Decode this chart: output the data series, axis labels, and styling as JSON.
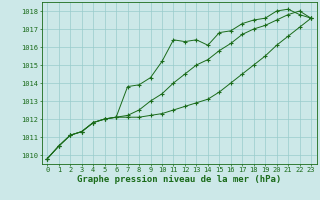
{
  "x": [
    0,
    1,
    2,
    3,
    4,
    5,
    6,
    7,
    8,
    9,
    10,
    11,
    12,
    13,
    14,
    15,
    16,
    17,
    18,
    19,
    20,
    21,
    22,
    23
  ],
  "line_top": [
    1009.8,
    1010.5,
    1011.1,
    1011.3,
    1011.8,
    1012.0,
    1012.1,
    1013.8,
    1013.9,
    1014.3,
    1015.2,
    1016.4,
    1016.3,
    1016.4,
    1016.1,
    1016.8,
    1016.9,
    1017.3,
    1017.5,
    1017.6,
    1018.0,
    1018.1,
    1017.8,
    1017.6
  ],
  "line_mid": [
    1009.8,
    1010.5,
    1011.1,
    1011.3,
    1011.8,
    1012.0,
    1012.1,
    1012.2,
    1012.5,
    1013.0,
    1013.4,
    1014.0,
    1014.5,
    1015.0,
    1015.3,
    1015.8,
    1016.2,
    1016.7,
    1017.0,
    1017.2,
    1017.5,
    1017.8,
    1018.0,
    1017.6
  ],
  "line_bot": [
    1009.8,
    1010.5,
    1011.1,
    1011.3,
    1011.8,
    1012.0,
    1012.1,
    1012.1,
    1012.1,
    1012.2,
    1012.3,
    1012.5,
    1012.7,
    1012.9,
    1013.1,
    1013.5,
    1014.0,
    1014.5,
    1015.0,
    1015.5,
    1016.1,
    1016.6,
    1017.1,
    1017.6
  ],
  "ylim": [
    1009.5,
    1018.5
  ],
  "xlim": [
    -0.5,
    23.5
  ],
  "yticks": [
    1010,
    1011,
    1012,
    1013,
    1014,
    1015,
    1016,
    1017,
    1018
  ],
  "xticks": [
    0,
    1,
    2,
    3,
    4,
    5,
    6,
    7,
    8,
    9,
    10,
    11,
    12,
    13,
    14,
    15,
    16,
    17,
    18,
    19,
    20,
    21,
    22,
    23
  ],
  "xlabel": "Graphe pression niveau de la mer (hPa)",
  "line_color": "#1a6b1a",
  "marker": "+",
  "bg_color": "#cce8e8",
  "grid_color": "#99cccc",
  "text_color": "#1a6b1a",
  "tick_color": "#1a6b1a",
  "axis_color": "#1a6b1a",
  "xlabel_fontsize": 6.5,
  "tick_fontsize": 5.0
}
